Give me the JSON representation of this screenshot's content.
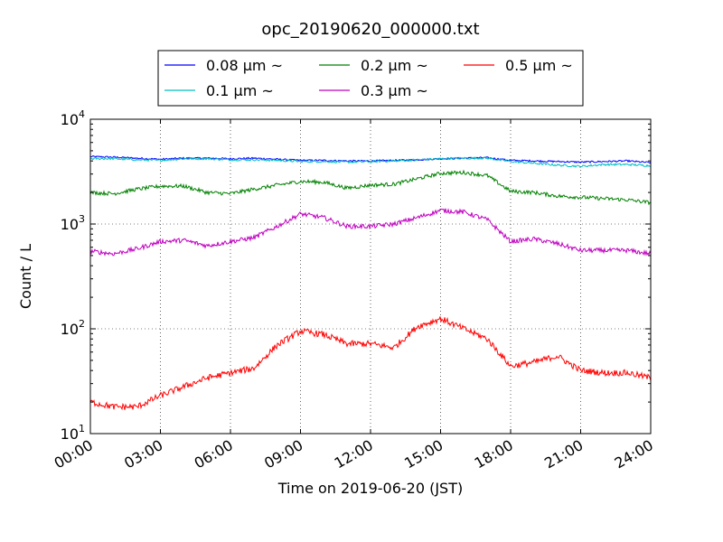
{
  "chart_data": {
    "type": "line",
    "title": "opc_20190620_000000.txt",
    "xlabel": "Time on 2019-06-20 (JST)",
    "ylabel": "Count / L",
    "y_scale": "log",
    "ylim": [
      10,
      10000
    ],
    "y_ticks": [
      {
        "value": 10,
        "base": "10",
        "exp": "1"
      },
      {
        "value": 100,
        "base": "10",
        "exp": "2"
      },
      {
        "value": 1000,
        "base": "10",
        "exp": "3"
      },
      {
        "value": 10000,
        "base": "10",
        "exp": "4"
      }
    ],
    "xlim": [
      0,
      24
    ],
    "x_ticks": [
      {
        "value": 0,
        "label": "00:00"
      },
      {
        "value": 3,
        "label": "03:00"
      },
      {
        "value": 6,
        "label": "06:00"
      },
      {
        "value": 9,
        "label": "09:00"
      },
      {
        "value": 12,
        "label": "12:00"
      },
      {
        "value": 15,
        "label": "15:00"
      },
      {
        "value": 18,
        "label": "18:00"
      },
      {
        "value": 21,
        "label": "21:00"
      },
      {
        "value": 24,
        "label": "24:00"
      }
    ],
    "grid": true,
    "legend_position": "top-center",
    "series": [
      {
        "name": "0.08 μm ~",
        "color": "#0000ff",
        "x": [
          0,
          1,
          2,
          3,
          4,
          5,
          6,
          7,
          8,
          9,
          10,
          11,
          12,
          13,
          14,
          15,
          16,
          17,
          18,
          19,
          20,
          21,
          22,
          23,
          24
        ],
        "y": [
          4400,
          4350,
          4250,
          4150,
          4250,
          4250,
          4200,
          4250,
          4150,
          4050,
          4050,
          4000,
          4000,
          4050,
          4100,
          4200,
          4250,
          4300,
          4050,
          4000,
          3950,
          3900,
          3950,
          4000,
          3850
        ]
      },
      {
        "name": "0.1 μm ~",
        "color": "#00bfbf",
        "x": [
          0,
          1,
          2,
          3,
          4,
          5,
          6,
          7,
          8,
          9,
          10,
          11,
          12,
          13,
          14,
          15,
          16,
          17,
          18,
          19,
          20,
          21,
          22,
          23,
          24
        ],
        "y": [
          4200,
          4200,
          4100,
          4050,
          4200,
          4200,
          4100,
          4100,
          4050,
          3950,
          3950,
          3900,
          3950,
          4000,
          4100,
          4200,
          4250,
          4250,
          3950,
          3800,
          3650,
          3550,
          3700,
          3700,
          3600
        ]
      },
      {
        "name": "0.2 μm ~",
        "color": "#008000",
        "x": [
          0,
          1,
          2,
          3,
          4,
          5,
          6,
          7,
          8,
          9,
          10,
          11,
          12,
          13,
          14,
          15,
          16,
          17,
          18,
          19,
          20,
          21,
          22,
          23,
          24
        ],
        "y": [
          2000,
          1950,
          2150,
          2300,
          2300,
          2000,
          1950,
          2150,
          2350,
          2550,
          2500,
          2200,
          2350,
          2400,
          2700,
          3050,
          3100,
          2900,
          2050,
          2000,
          1850,
          1800,
          1750,
          1700,
          1600
        ]
      },
      {
        "name": "0.3 μm ~",
        "color": "#bf00bf",
        "x": [
          0,
          1,
          2,
          3,
          4,
          5,
          6,
          7,
          8,
          9,
          10,
          11,
          12,
          13,
          14,
          15,
          16,
          17,
          18,
          19,
          20,
          21,
          22,
          23,
          24
        ],
        "y": [
          550,
          520,
          580,
          680,
          700,
          620,
          680,
          740,
          950,
          1250,
          1150,
          950,
          950,
          1000,
          1150,
          1350,
          1300,
          1100,
          680,
          720,
          650,
          560,
          560,
          560,
          520
        ]
      },
      {
        "name": "0.5 μm ~",
        "color": "#ff0000",
        "x": [
          0,
          1,
          2,
          3,
          4,
          5,
          6,
          7,
          8,
          9,
          10,
          11,
          12,
          13,
          14,
          15,
          16,
          17,
          18,
          19,
          20,
          21,
          22,
          23,
          24
        ],
        "y": [
          20,
          18,
          18,
          23,
          28,
          34,
          38,
          42,
          70,
          95,
          88,
          72,
          72,
          66,
          105,
          125,
          100,
          80,
          44,
          48,
          55,
          40,
          38,
          38,
          34
        ]
      }
    ]
  }
}
